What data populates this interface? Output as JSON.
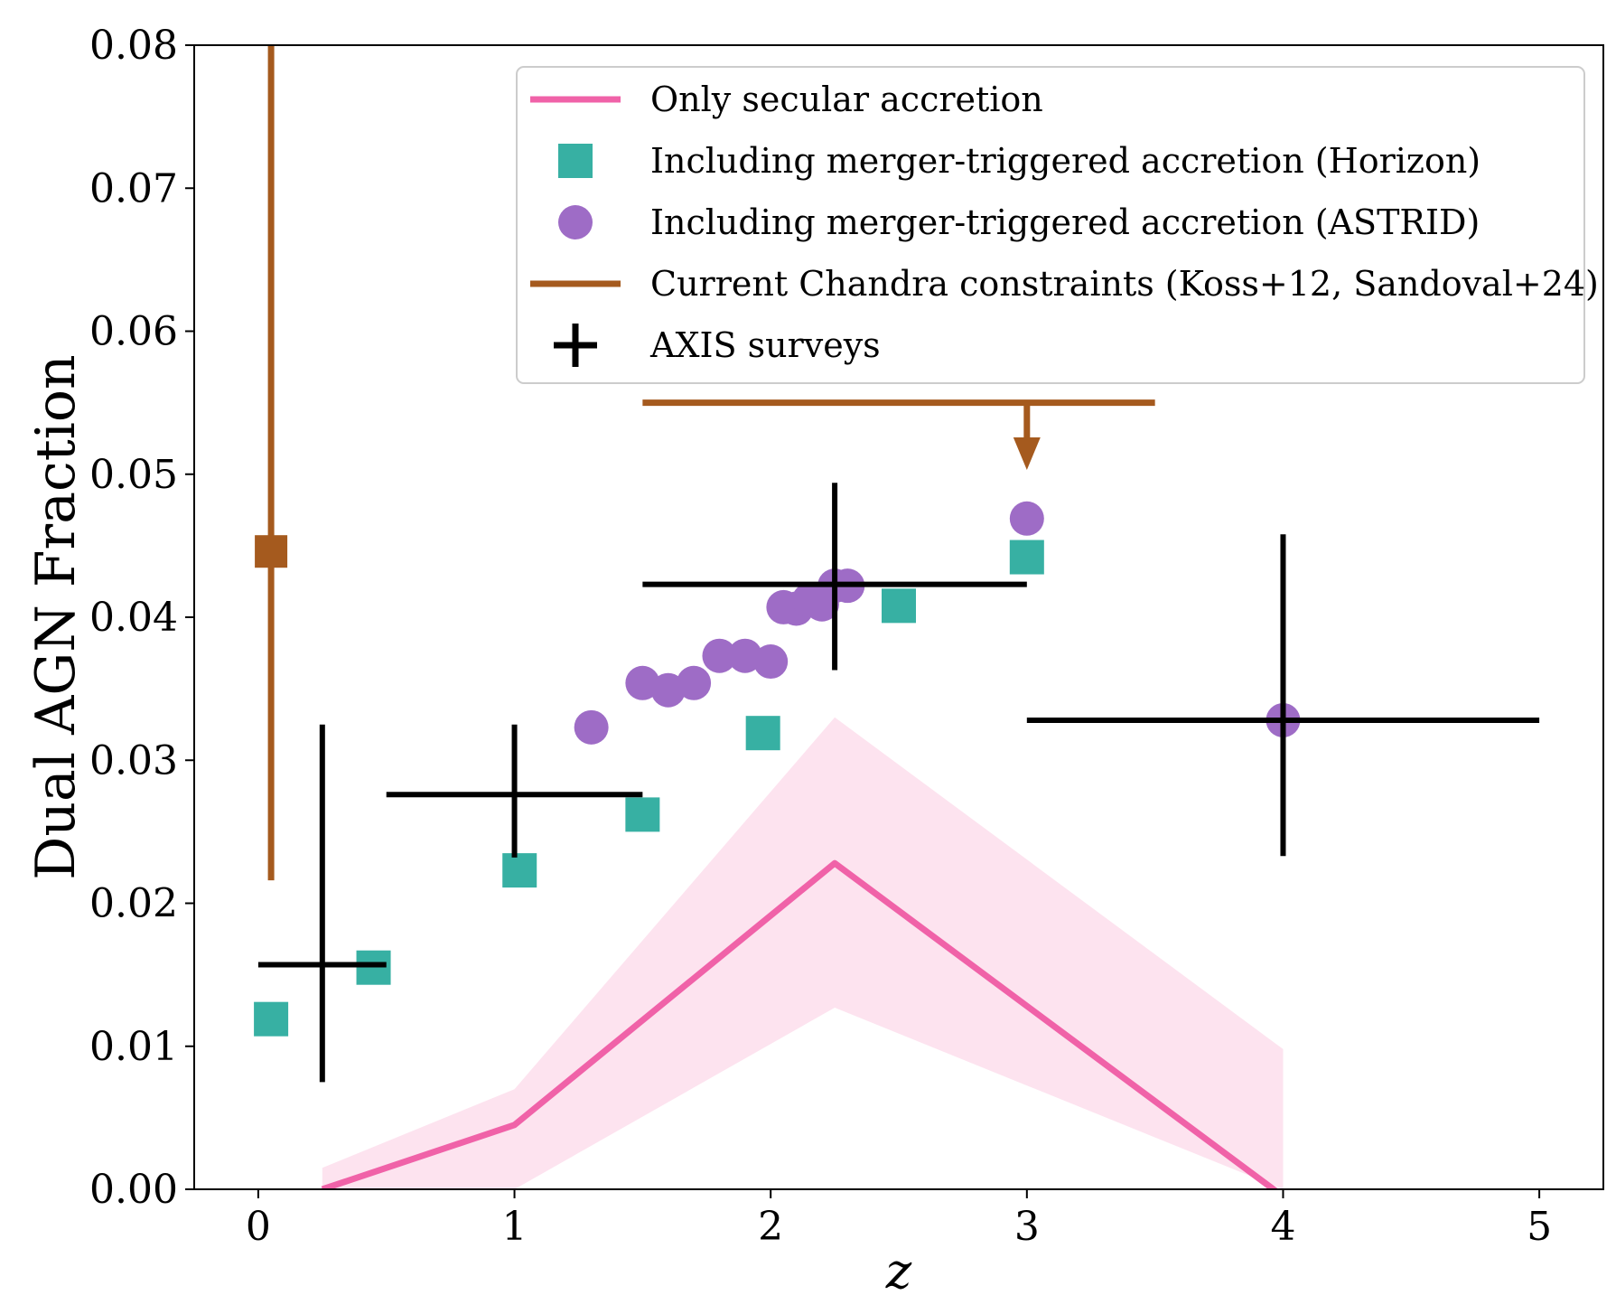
{
  "chart_data": {
    "type": "scatter",
    "xlabel": "z",
    "ylabel": "Dual AGN Fraction",
    "xlim": [
      -0.25,
      5.25
    ],
    "ylim": [
      0,
      0.08
    ],
    "xticks": [
      0,
      1,
      2,
      3,
      4,
      5
    ],
    "xtick_labels": [
      "0",
      "1",
      "2",
      "3",
      "4",
      "5"
    ],
    "yticks": [
      0,
      0.01,
      0.02,
      0.03,
      0.04,
      0.05,
      0.06,
      0.07,
      0.08
    ],
    "ytick_labels": [
      "0.00",
      "0.01",
      "0.02",
      "0.03",
      "0.04",
      "0.05",
      "0.06",
      "0.07",
      "0.08"
    ],
    "grid": false,
    "legend_position": "top-right",
    "colors": {
      "secular": "#f062a8",
      "secular_band": "#fde3ef",
      "horizon": "#37b0a3",
      "astrid": "#9e6cc6",
      "chandra": "#a55a1e",
      "axis": "#000000"
    },
    "legend": [
      {
        "label": "Only secular accretion",
        "marker": "line",
        "series": "secular"
      },
      {
        "label": "Including merger-triggered accretion (Horizon)",
        "marker": "square",
        "series": "horizon"
      },
      {
        "label": "Including merger-triggered accretion (ASTRID)",
        "marker": "circle",
        "series": "astrid"
      },
      {
        "label": "Current Chandra constraints (Koss+12, Sandoval+24)",
        "marker": "line",
        "series": "chandra"
      },
      {
        "label": "AXIS surveys",
        "marker": "plus",
        "series": "axis"
      }
    ],
    "secular": {
      "x": [
        0.25,
        1.0,
        2.25,
        4.0
      ],
      "y": [
        0.0,
        0.0045,
        0.0228,
        -0.0005
      ]
    },
    "secular_band": {
      "x": [
        0.25,
        1.0,
        2.25,
        4.0
      ],
      "upper": [
        0.0015,
        0.007,
        0.033,
        0.0098
      ],
      "lower": [
        0.0,
        0.0,
        0.0127,
        0.0
      ]
    },
    "horizon": {
      "x": [
        0.05,
        0.45,
        1.02,
        1.5,
        1.97,
        2.5,
        3.0
      ],
      "y": [
        0.0119,
        0.0155,
        0.0223,
        0.0262,
        0.0319,
        0.0408,
        0.0442
      ]
    },
    "astrid": {
      "x": [
        1.3,
        1.5,
        1.6,
        1.7,
        1.8,
        1.9,
        2.0,
        2.05,
        2.1,
        2.15,
        2.2,
        2.25,
        2.3,
        3.0,
        4.0
      ],
      "y": [
        0.0323,
        0.0354,
        0.0349,
        0.0354,
        0.0373,
        0.0373,
        0.0369,
        0.0407,
        0.0406,
        0.0412,
        0.0409,
        0.0422,
        0.0422,
        0.0469,
        0.0328
      ]
    },
    "chandra": {
      "points": [
        {
          "x": 0.05,
          "y": 0.0446,
          "yerr_low": 0.0216,
          "yerr_high": 0.08
        }
      ],
      "upper_limit": {
        "x_low": 1.5,
        "x_high": 3.5,
        "y": 0.055,
        "x_arrow": 3.0,
        "arrow_to": 0.0503
      }
    },
    "axis": {
      "points": [
        {
          "x": 0.25,
          "y": 0.0157,
          "x_low": 0.0,
          "x_high": 0.5,
          "y_low": 0.0075,
          "y_high": 0.0325
        },
        {
          "x": 1.0,
          "y": 0.0276,
          "x_low": 0.5,
          "x_high": 1.5,
          "y_low": 0.0232,
          "y_high": 0.0325
        },
        {
          "x": 2.25,
          "y": 0.0423,
          "x_low": 1.5,
          "x_high": 3.0,
          "y_low": 0.0363,
          "y_high": 0.0494
        },
        {
          "x": 4.0,
          "y": 0.0328,
          "x_low": 3.0,
          "x_high": 5.0,
          "y_low": 0.0233,
          "y_high": 0.0458
        }
      ]
    }
  }
}
